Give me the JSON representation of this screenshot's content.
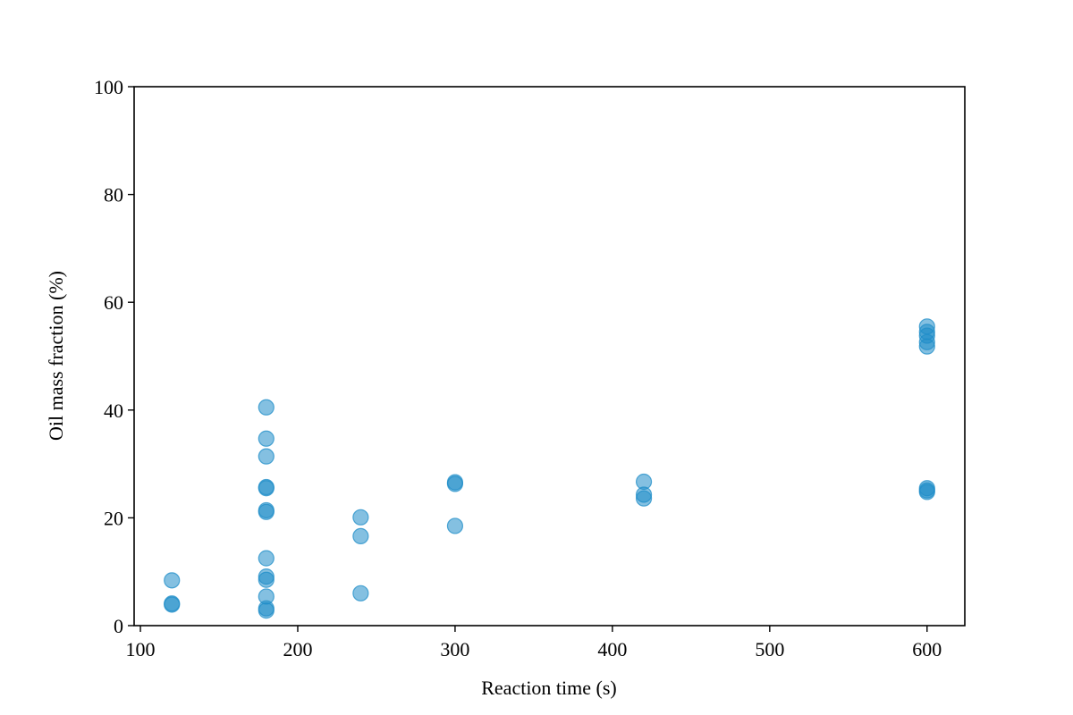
{
  "chart_data": {
    "type": "scatter",
    "title": "",
    "xlabel": "Reaction time (s)",
    "ylabel": "Oil mass fraction (%)",
    "xlim": [
      96,
      624
    ],
    "ylim": [
      0,
      100
    ],
    "xticks": [
      100,
      200,
      300,
      400,
      500,
      600
    ],
    "yticks": [
      0,
      20,
      40,
      60,
      80,
      100
    ],
    "grid": false,
    "legend": "none",
    "marker_color": "#1f8dc8",
    "marker_alpha": 0.55,
    "series": [
      {
        "points": [
          [
            120,
            8.4
          ],
          [
            120,
            4.1
          ],
          [
            120,
            3.9
          ],
          [
            180,
            40.5
          ],
          [
            180,
            34.7
          ],
          [
            180,
            31.4
          ],
          [
            180,
            25.7
          ],
          [
            180,
            25.5
          ],
          [
            180,
            21.4
          ],
          [
            180,
            21.1
          ],
          [
            180,
            12.5
          ],
          [
            180,
            9.1
          ],
          [
            180,
            8.5
          ],
          [
            180,
            5.4
          ],
          [
            180,
            3.2
          ],
          [
            180,
            2.8
          ],
          [
            240,
            20.1
          ],
          [
            240,
            16.6
          ],
          [
            240,
            6.0
          ],
          [
            300,
            26.6
          ],
          [
            300,
            26.3
          ],
          [
            300,
            18.5
          ],
          [
            420,
            26.7
          ],
          [
            420,
            24.3
          ],
          [
            420,
            23.6
          ],
          [
            600,
            55.5
          ],
          [
            600,
            54.5
          ],
          [
            600,
            53.8
          ],
          [
            600,
            52.6
          ],
          [
            600,
            51.8
          ],
          [
            600,
            25.5
          ],
          [
            600,
            25.1
          ],
          [
            600,
            24.8
          ]
        ]
      }
    ]
  }
}
